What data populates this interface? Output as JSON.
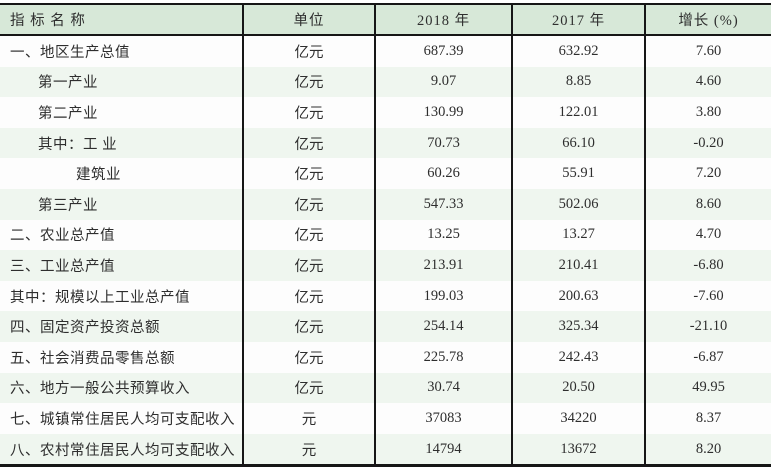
{
  "colors": {
    "header_bg": "#d7e8d8",
    "alt_row_bg": "#eff6ef",
    "row_bg": "#fdfdfd",
    "border": "#161616",
    "text": "#2e2e2e"
  },
  "chart_data": {
    "type": "table",
    "columns": [
      "指  标  名  称",
      "单位",
      "2018 年",
      "2017 年",
      "增长 (%)"
    ],
    "rows": [
      {
        "name": "一、地区生产总值",
        "indent": 0,
        "unit": "亿元",
        "v2018": "687.39",
        "v2017": "632.92",
        "growth": "7.60"
      },
      {
        "name": "第一产业",
        "indent": 1,
        "unit": "亿元",
        "v2018": "9.07",
        "v2017": "8.85",
        "growth": "4.60"
      },
      {
        "name": "第二产业",
        "indent": 1,
        "unit": "亿元",
        "v2018": "130.99",
        "v2017": "122.01",
        "growth": "3.80"
      },
      {
        "name": "其中：工 业",
        "indent": 1,
        "unit": "亿元",
        "v2018": "70.73",
        "v2017": "66.10",
        "growth": "-0.20"
      },
      {
        "name": "建筑业",
        "indent": 2,
        "unit": "亿元",
        "v2018": "60.26",
        "v2017": "55.91",
        "growth": "7.20"
      },
      {
        "name": "第三产业",
        "indent": 1,
        "unit": "亿元",
        "v2018": "547.33",
        "v2017": "502.06",
        "growth": "8.60"
      },
      {
        "name": "二、农业总产值",
        "indent": 0,
        "unit": "亿元",
        "v2018": "13.25",
        "v2017": "13.27",
        "growth": "4.70"
      },
      {
        "name": "三、工业总产值",
        "indent": 0,
        "unit": "亿元",
        "v2018": "213.91",
        "v2017": "210.41",
        "growth": "-6.80"
      },
      {
        "name": "其中：规模以上工业总产值",
        "indent": 0,
        "unit": "亿元",
        "v2018": "199.03",
        "v2017": "200.63",
        "growth": "-7.60"
      },
      {
        "name": "四、固定资产投资总额",
        "indent": 0,
        "unit": "亿元",
        "v2018": "254.14",
        "v2017": "325.34",
        "growth": "-21.10"
      },
      {
        "name": "五、社会消费品零售总额",
        "indent": 0,
        "unit": "亿元",
        "v2018": "225.78",
        "v2017": "242.43",
        "growth": "-6.87"
      },
      {
        "name": "六、地方一般公共预算收入",
        "indent": 0,
        "unit": "亿元",
        "v2018": "30.74",
        "v2017": "20.50",
        "growth": "49.95"
      },
      {
        "name": "七、城镇常住居民人均可支配收入",
        "indent": 0,
        "unit": "元",
        "v2018": "37083",
        "v2017": "34220",
        "growth": "8.37"
      },
      {
        "name": "八、农村常住居民人均可支配收入",
        "indent": 0,
        "unit": "元",
        "v2018": "14794",
        "v2017": "13672",
        "growth": "8.20"
      }
    ]
  }
}
